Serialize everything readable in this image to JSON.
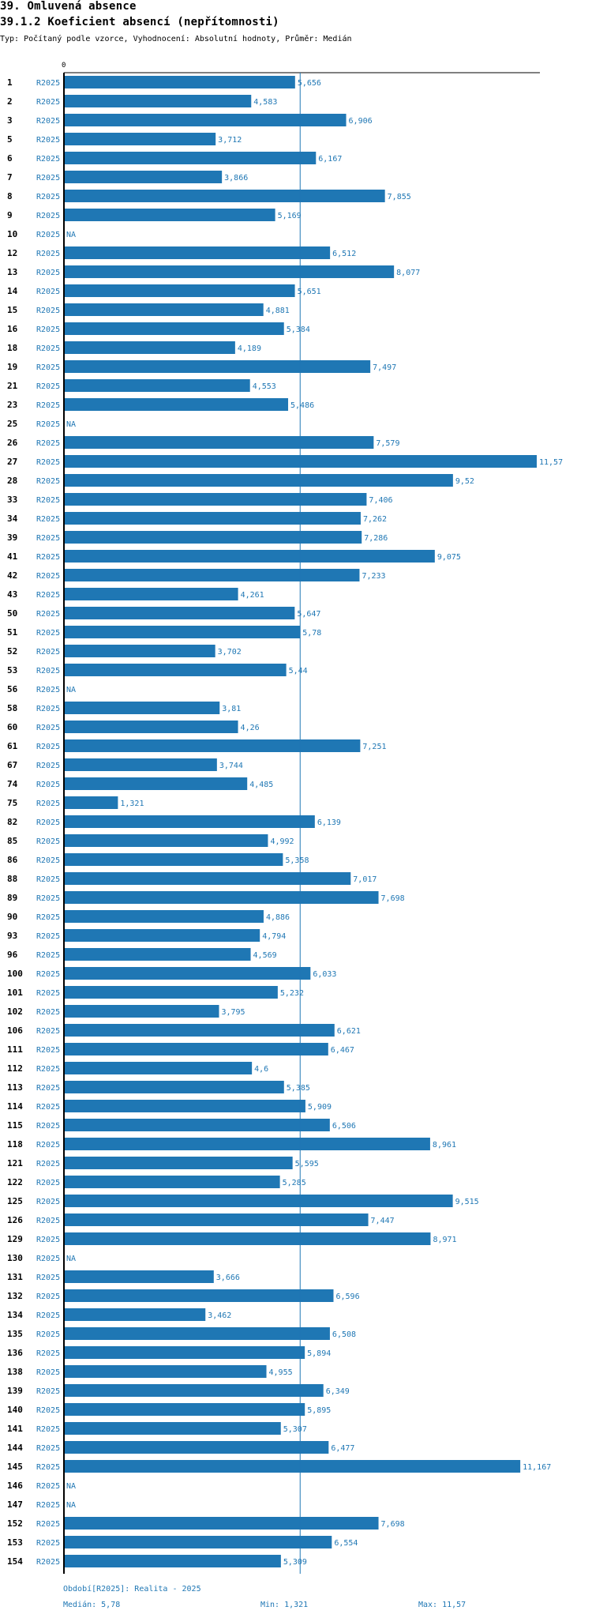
{
  "header": {
    "title": "39. Omluvená absence",
    "subtitle": "39.1.2 Koeficient absencí (nepřítomnosti)",
    "info": "Typ: Počítaný podle vzorce, Vyhodnocení: Absolutní hodnoty, Průměr: Medián"
  },
  "colors": {
    "bar": "#1f77b4",
    "text_blue": "#1f77b4",
    "axis": "#000000"
  },
  "chart_data": {
    "type": "bar",
    "orientation": "horizontal",
    "axis_zero_label": "0",
    "series_label": "R2025",
    "xlim": [
      0,
      11.57
    ],
    "reference_line": 5.78,
    "categories": [
      "1",
      "2",
      "3",
      "5",
      "6",
      "7",
      "8",
      "9",
      "10",
      "12",
      "13",
      "14",
      "15",
      "16",
      "18",
      "19",
      "21",
      "23",
      "25",
      "26",
      "27",
      "28",
      "33",
      "34",
      "39",
      "41",
      "42",
      "43",
      "50",
      "51",
      "52",
      "53",
      "56",
      "58",
      "60",
      "61",
      "67",
      "74",
      "75",
      "82",
      "85",
      "86",
      "88",
      "89",
      "90",
      "93",
      "96",
      "100",
      "101",
      "102",
      "106",
      "111",
      "112",
      "113",
      "114",
      "115",
      "118",
      "121",
      "122",
      "125",
      "126",
      "129",
      "130",
      "131",
      "132",
      "134",
      "135",
      "136",
      "138",
      "139",
      "140",
      "141",
      "144",
      "145",
      "146",
      "147",
      "152",
      "153",
      "154"
    ],
    "values": [
      5.656,
      4.583,
      6.906,
      3.712,
      6.167,
      3.866,
      7.855,
      5.169,
      null,
      6.512,
      8.077,
      5.651,
      4.881,
      5.384,
      4.189,
      7.497,
      4.553,
      5.486,
      null,
      7.579,
      11.57,
      9.52,
      7.406,
      7.262,
      7.286,
      9.075,
      7.233,
      4.261,
      5.647,
      5.78,
      3.702,
      5.44,
      null,
      3.81,
      4.26,
      7.251,
      3.744,
      4.485,
      1.321,
      6.139,
      4.992,
      5.358,
      7.017,
      7.698,
      4.886,
      4.794,
      4.569,
      6.033,
      5.232,
      3.795,
      6.621,
      6.467,
      4.6,
      5.385,
      5.909,
      6.506,
      8.961,
      5.595,
      5.285,
      9.515,
      7.447,
      8.971,
      null,
      3.666,
      6.596,
      3.462,
      6.508,
      5.894,
      4.955,
      6.349,
      5.895,
      5.307,
      6.477,
      11.167,
      null,
      null,
      7.698,
      6.554,
      5.309
    ],
    "labels": [
      "5,656",
      "4,583",
      "6,906",
      "3,712",
      "6,167",
      "3,866",
      "7,855",
      "5,169",
      "NA",
      "6,512",
      "8,077",
      "5,651",
      "4,881",
      "5,384",
      "4,189",
      "7,497",
      "4,553",
      "5,486",
      "NA",
      "7,579",
      "11,57",
      "9,52",
      "7,406",
      "7,262",
      "7,286",
      "9,075",
      "7,233",
      "4,261",
      "5,647",
      "5,78",
      "3,702",
      "5,44",
      "NA",
      "3,81",
      "4,26",
      "7,251",
      "3,744",
      "4,485",
      "1,321",
      "6,139",
      "4,992",
      "5,358",
      "7,017",
      "7,698",
      "4,886",
      "4,794",
      "4,569",
      "6,033",
      "5,232",
      "3,795",
      "6,621",
      "6,467",
      "4,6",
      "5,385",
      "5,909",
      "6,506",
      "8,961",
      "5,595",
      "5,285",
      "9,515",
      "7,447",
      "8,971",
      "NA",
      "3,666",
      "6,596",
      "3,462",
      "6,508",
      "5,894",
      "4,955",
      "6,349",
      "5,895",
      "5,307",
      "6,477",
      "11,167",
      "NA",
      "NA",
      "7,698",
      "6,554",
      "5,309"
    ]
  },
  "footer": {
    "period": "Období[R2025]: Realita - 2025",
    "median": "Medián: 5,78",
    "min": "Min: 1,321",
    "max": "Max: 11,57"
  }
}
